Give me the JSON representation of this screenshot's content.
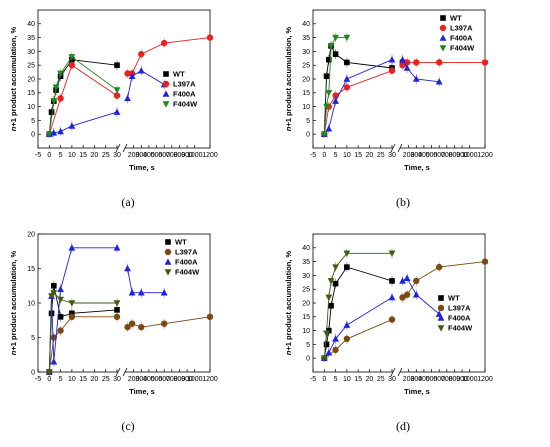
{
  "colors": {
    "WT": "#000000",
    "L397A": "#e8221f",
    "F400A": "#1f22e0",
    "F404W": "#1e8a1e",
    "L397A_alt": "#7a4a12",
    "F404W_alt": "#3b5e12"
  },
  "chart_data": [
    {
      "type": "scatter",
      "panel_label": "(a)",
      "xlabel": "Time, s",
      "ylabel_italic": "n",
      "ylabel_rest": "+1 product accumulation, %",
      "ylim": [
        -5,
        45
      ],
      "yticks": [
        "0",
        "5",
        "10",
        "15",
        "20",
        "25",
        "30",
        "35",
        "40"
      ],
      "xticks_left": [
        "-5",
        "0",
        "5",
        "10",
        "15",
        "20",
        "25",
        "30"
      ],
      "xticks_right": [
        "200",
        "300",
        "400",
        "500",
        "600",
        "700",
        "800",
        "900",
        "1000",
        "1200"
      ],
      "legend": [
        "WT",
        "L397A",
        "F400A",
        "F404W"
      ],
      "legend_position": "middle-right",
      "series": [
        {
          "name": "WT",
          "marker": "square",
          "x": [
            0,
            1,
            2,
            3,
            5,
            10,
            30
          ],
          "y": [
            0,
            8,
            12,
            16,
            21,
            27,
            25
          ]
        },
        {
          "name": "L397A",
          "marker": "circle",
          "x": [
            0,
            5,
            10,
            30,
            120,
            180,
            300,
            600,
            1200
          ],
          "y": [
            0,
            13,
            25,
            14,
            22,
            22,
            29,
            33,
            35
          ]
        },
        {
          "name": "F400A",
          "marker": "triangle-up",
          "x": [
            0,
            2,
            5,
            10,
            30,
            120,
            180,
            300,
            600
          ],
          "y": [
            0,
            0.5,
            1,
            3,
            8,
            13,
            21,
            23,
            18
          ]
        },
        {
          "name": "F404W",
          "marker": "triangle-down",
          "x": [
            0,
            2,
            3,
            5,
            10,
            30
          ],
          "y": [
            0,
            12,
            17,
            22,
            28,
            16
          ]
        }
      ]
    },
    {
      "type": "scatter",
      "panel_label": "(b)",
      "xlabel": "Time, s",
      "ylabel_italic": "n",
      "ylabel_rest": "+1 product accumulation, %",
      "ylim": [
        -5,
        45
      ],
      "yticks": [
        "0",
        "5",
        "10",
        "15",
        "20",
        "25",
        "30",
        "35",
        "40"
      ],
      "xticks_left": [
        "-5",
        "0",
        "5",
        "10",
        "15",
        "20",
        "25",
        "30"
      ],
      "xticks_right": [
        "200",
        "300",
        "400",
        "500",
        "600",
        "700",
        "800",
        "900",
        "1000",
        "1200"
      ],
      "legend": [
        "WT",
        "L397A",
        "F400A",
        "F404W"
      ],
      "legend_position": "top-right",
      "series": [
        {
          "name": "WT",
          "marker": "square",
          "x": [
            0,
            1,
            2,
            3,
            5,
            10,
            30,
            120
          ],
          "y": [
            0,
            21,
            27,
            32,
            29,
            26,
            24,
            26
          ]
        },
        {
          "name": "L397A",
          "marker": "circle",
          "x": [
            0,
            2,
            5,
            10,
            30,
            120,
            180,
            300,
            600,
            1200
          ],
          "y": [
            0,
            10,
            14,
            17,
            23,
            25,
            26,
            26,
            26,
            26
          ]
        },
        {
          "name": "F400A",
          "marker": "triangle-up",
          "x": [
            0,
            2,
            5,
            10,
            30,
            120,
            180,
            300,
            600
          ],
          "y": [
            0,
            2,
            12,
            20,
            27,
            27,
            24,
            20,
            19
          ]
        },
        {
          "name": "F404W",
          "marker": "triangle-down",
          "x": [
            0,
            1,
            2,
            3,
            5,
            10
          ],
          "y": [
            0,
            10,
            15,
            32,
            35,
            35
          ]
        }
      ]
    },
    {
      "type": "scatter",
      "panel_label": "(c)",
      "xlabel": "Time, s",
      "ylabel_italic": "n",
      "ylabel_rest": "+1 product accumulation, %",
      "ylim": [
        0,
        20
      ],
      "yticks": [
        "0",
        "5",
        "10",
        "15",
        "20"
      ],
      "xticks_left": [
        "-5",
        "0",
        "5",
        "10",
        "15",
        "20",
        "25",
        "30"
      ],
      "xticks_right": [
        "200",
        "300",
        "400",
        "500",
        "600",
        "700",
        "800",
        "900",
        "1000",
        "1200"
      ],
      "legend": [
        "WT",
        "L397A",
        "F400A",
        "F404W"
      ],
      "legend_position": "top-right",
      "series": [
        {
          "name": "WT",
          "marker": "square",
          "x": [
            0,
            1,
            2,
            5,
            10,
            30
          ],
          "y": [
            0,
            8.5,
            12.5,
            8,
            8.5,
            9
          ]
        },
        {
          "name": "L397A",
          "marker": "circle",
          "x": [
            0,
            2,
            5,
            10,
            30,
            120,
            180,
            300,
            600,
            1200
          ],
          "y": [
            0,
            5,
            6,
            8,
            8,
            6.5,
            7,
            6.5,
            7,
            8
          ]
        },
        {
          "name": "F400A",
          "marker": "triangle-up",
          "x": [
            0,
            1,
            2,
            5,
            10,
            30,
            120,
            180,
            300,
            600
          ],
          "y": [
            0,
            11,
            1.5,
            12,
            18,
            18,
            15,
            11.5,
            11.5,
            11.5
          ]
        },
        {
          "name": "F404W",
          "marker": "triangle-down",
          "x": [
            0,
            1,
            2,
            5,
            10,
            30
          ],
          "y": [
            0,
            11,
            11.5,
            10.5,
            10,
            10
          ]
        }
      ]
    },
    {
      "type": "scatter",
      "panel_label": "(d)",
      "xlabel": "Time, s",
      "ylabel_italic": "n",
      "ylabel_rest": "+1 product accumulation, %",
      "ylim": [
        -5,
        45
      ],
      "yticks": [
        "0",
        "5",
        "10",
        "15",
        "20",
        "25",
        "30",
        "35",
        "40"
      ],
      "xticks_left": [
        "-5",
        "0",
        "5",
        "10",
        "15",
        "20",
        "25",
        "30"
      ],
      "xticks_right": [
        "200",
        "300",
        "400",
        "500",
        "600",
        "700",
        "800",
        "900",
        "1000",
        "1200"
      ],
      "legend": [
        "WT",
        "L397A",
        "F400A",
        "F404W"
      ],
      "legend_position": "middle-right",
      "series": [
        {
          "name": "WT",
          "marker": "square",
          "x": [
            0,
            1,
            2,
            3,
            5,
            10,
            30
          ],
          "y": [
            0,
            5,
            10,
            19,
            27,
            33,
            28
          ]
        },
        {
          "name": "L397A",
          "marker": "circle",
          "x": [
            0,
            5,
            10,
            30,
            120,
            180,
            300,
            600,
            1200
          ],
          "y": [
            0,
            3,
            7,
            14,
            22,
            23,
            28,
            33,
            35
          ]
        },
        {
          "name": "F400A",
          "marker": "triangle-up",
          "x": [
            0,
            2,
            5,
            10,
            30,
            120,
            180,
            300,
            600
          ],
          "y": [
            0,
            2,
            7,
            12,
            22,
            28,
            29,
            23,
            16
          ]
        },
        {
          "name": "F404W",
          "marker": "triangle-down",
          "x": [
            0,
            1,
            2,
            3,
            5,
            10,
            30
          ],
          "y": [
            0,
            9,
            22,
            28,
            33,
            38,
            38
          ]
        }
      ]
    }
  ]
}
